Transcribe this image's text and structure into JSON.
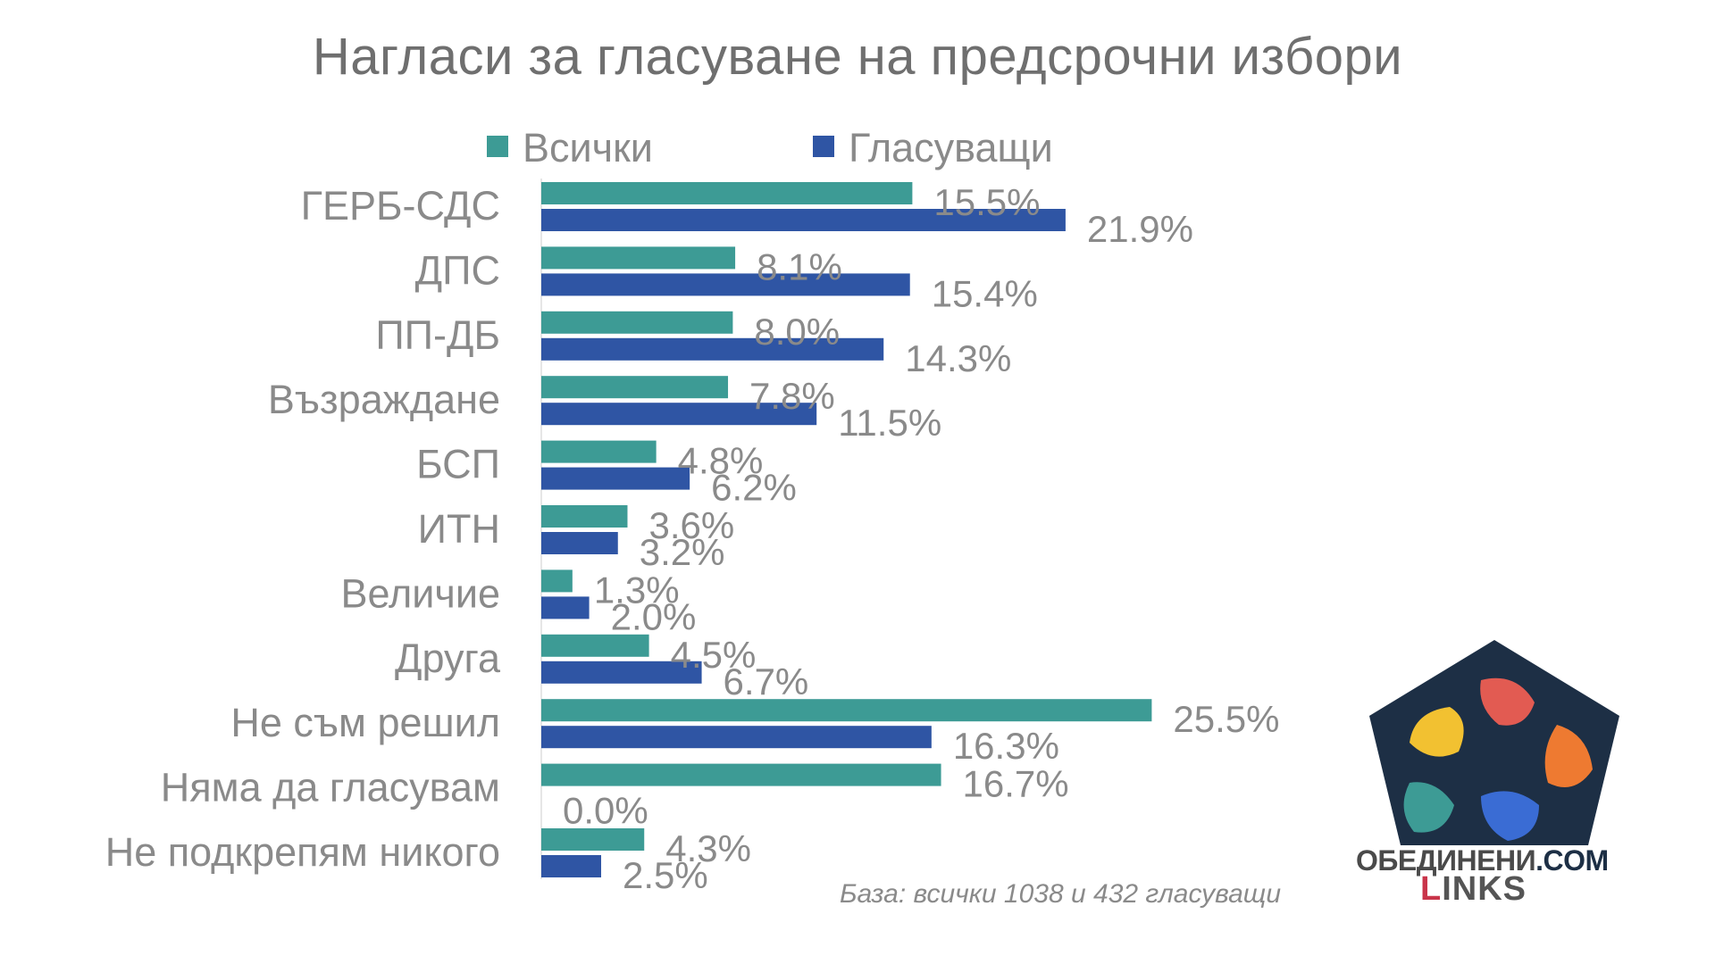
{
  "chart_data": {
    "type": "bar",
    "orientation": "horizontal",
    "title": "Нагласи за гласуване на предсрочни избори",
    "categories": [
      "ГЕРБ-СДС",
      "ДПС",
      "ПП-ДБ",
      "Възраждане",
      "БСП",
      "ИТН",
      "Величие",
      "Друга",
      "Не съм решил",
      "Няма да гласувам",
      "Не подкрепям никого"
    ],
    "series": [
      {
        "name": "Всички",
        "color": "#3d9b95",
        "values": [
          15.5,
          8.1,
          8.0,
          7.8,
          4.8,
          3.6,
          1.3,
          4.5,
          25.5,
          16.7,
          4.3
        ],
        "labels": [
          "15.5%",
          "8.1%",
          "8.0%",
          "7.8%",
          "4.8%",
          "3.6%",
          "1.3%",
          "4.5%",
          "25.5%",
          "16.7%",
          "4.3%"
        ]
      },
      {
        "name": "Гласуващи",
        "color": "#2f55a4",
        "values": [
          21.9,
          15.4,
          14.3,
          11.5,
          6.2,
          3.2,
          2.0,
          6.7,
          16.3,
          0.0,
          2.5
        ],
        "labels": [
          "21.9%",
          "15.4%",
          "14.3%",
          "11.5%",
          "6.2%",
          "3.2%",
          "2.0%",
          "6.7%",
          "16.3%",
          "0.0%",
          "2.5%"
        ]
      }
    ],
    "legend": "top",
    "grid": false,
    "xlim": [
      0,
      30
    ]
  },
  "footnote": "База: всички 1038 и 432 гласуващи",
  "logo": {
    "line1_prefix": "ОБЕДИНЕНИ",
    "line1_suffix": ".COM",
    "line2_prefix": "L",
    "line2_suffix": "INKS",
    "colors": [
      "#f2c131",
      "#e25b52",
      "#ee7a31",
      "#3d9b95",
      "#3a6cd4"
    ],
    "hub_color": "#1d2f45"
  }
}
